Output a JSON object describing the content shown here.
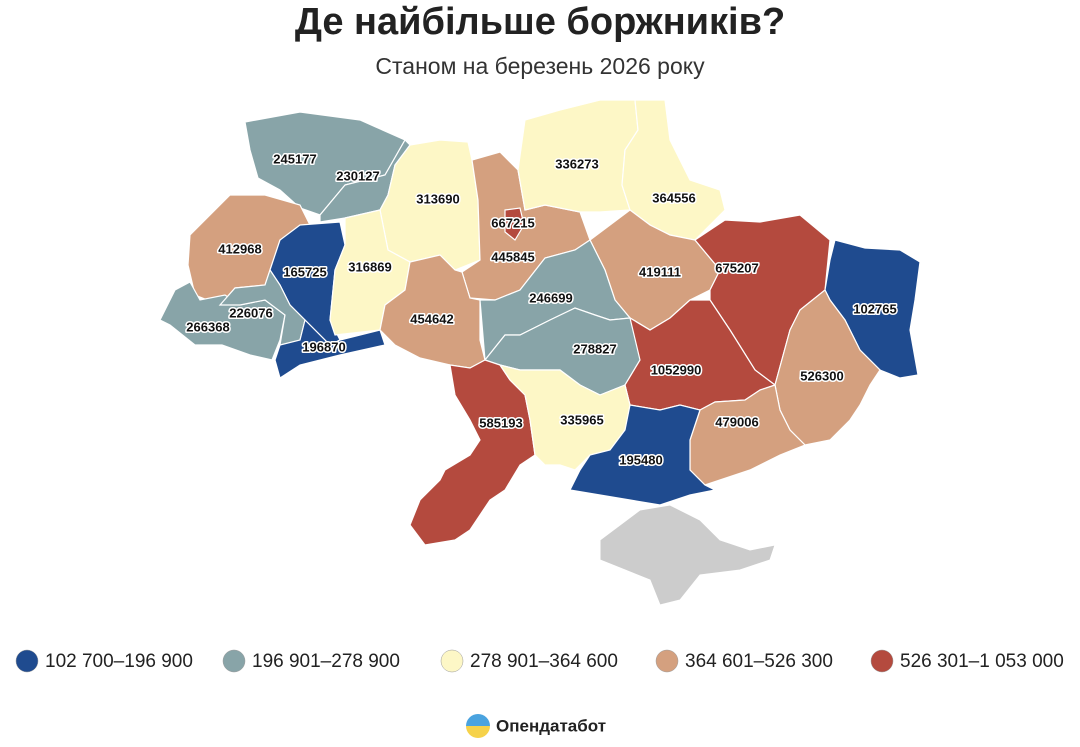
{
  "chart_data": {
    "type": "choropleth",
    "title": "Де найбільше боржників?",
    "subtitle": "Станом на березень 2026 року",
    "values": [
      245177,
      230127,
      313690,
      667215,
      445845,
      336273,
      364556,
      412968,
      165725,
      316869,
      419111,
      675207,
      102765,
      266368,
      226076,
      196870,
      454642,
      246699,
      278827,
      1052990,
      526300,
      585193,
      335965,
      479006,
      195480
    ],
    "legend": [
      {
        "min": 102700,
        "max": 196900,
        "label": "102 700–196 900",
        "color": "#1f4b8f"
      },
      {
        "min": 196901,
        "max": 278900,
        "label": "196 901–278 900",
        "color": "#88a4a8"
      },
      {
        "min": 278901,
        "max": 364600,
        "label": "278 901–364 600",
        "color": "#fdf7c6"
      },
      {
        "min": 364601,
        "max": 526300,
        "label": "364 601–526 300",
        "color": "#d4a07f"
      },
      {
        "min": 526301,
        "max": 1053000,
        "label": "526 301–1 053 000",
        "color": "#b44a3e"
      }
    ],
    "source": "Опендатабот"
  }
}
